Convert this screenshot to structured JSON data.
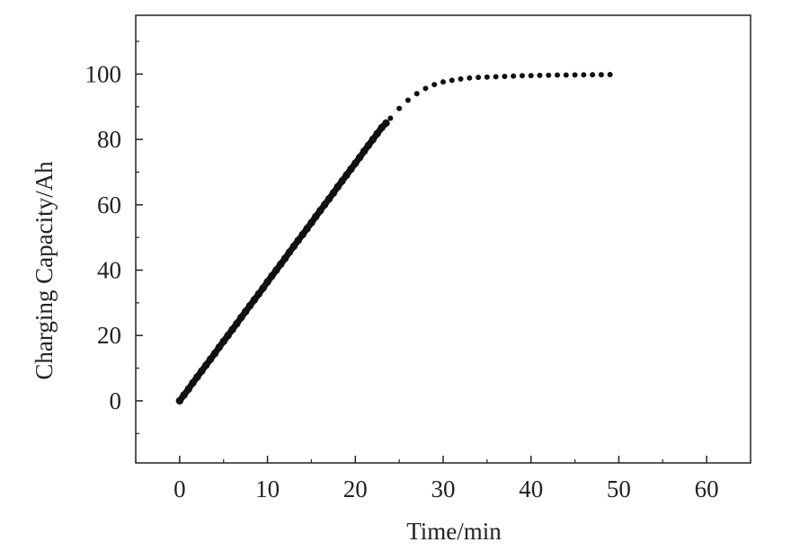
{
  "chart_data": {
    "type": "scatter",
    "title": "",
    "xlabel": "Time/min",
    "ylabel": "Charging Capacity/Ah",
    "xlim": [
      -5,
      65
    ],
    "ylim": [
      -19,
      118
    ],
    "x_ticks": [
      0,
      10,
      20,
      30,
      40,
      50,
      60
    ],
    "y_ticks": [
      0,
      20,
      40,
      60,
      80,
      100
    ],
    "grid": false,
    "legend": "none",
    "marker_color": "#111111",
    "series": [
      {
        "x": [
          0,
          0.5,
          1,
          1.5,
          2,
          2.5,
          3,
          3.5,
          4,
          4.5,
          5,
          5.5,
          6,
          6.5,
          7,
          7.5,
          8,
          8.5,
          9,
          9.5,
          10,
          10.5,
          11,
          11.5,
          12,
          12.5,
          13,
          13.5,
          14,
          14.5,
          15,
          15.5,
          16,
          16.5,
          17,
          17.5,
          18,
          18.5,
          19,
          19.5,
          20,
          20.5,
          21,
          21.5,
          22,
          22.5,
          23,
          23.5,
          24,
          25,
          26,
          27,
          28,
          29,
          30,
          31,
          32,
          33,
          34,
          35,
          36,
          37,
          38,
          39,
          40,
          41,
          42,
          43,
          44,
          45,
          46,
          47,
          48,
          49
        ],
        "y": [
          0,
          1.8,
          3.6,
          5.5,
          7.3,
          9.1,
          10.9,
          12.7,
          14.5,
          16.4,
          18.2,
          20.0,
          21.8,
          23.6,
          25.5,
          27.3,
          29.1,
          30.9,
          32.7,
          34.5,
          36.4,
          38.2,
          40.0,
          41.8,
          43.6,
          45.5,
          47.3,
          49.1,
          50.9,
          52.7,
          54.5,
          56.4,
          58.2,
          60.0,
          61.8,
          63.6,
          65.5,
          67.3,
          69.1,
          70.9,
          72.7,
          74.5,
          76.4,
          78.2,
          80.0,
          81.8,
          83.6,
          85.0,
          86.5,
          89.5,
          92.0,
          94.0,
          95.6,
          96.8,
          97.6,
          98.1,
          98.5,
          98.8,
          99.0,
          99.1,
          99.2,
          99.3,
          99.4,
          99.5,
          99.55,
          99.6,
          99.65,
          99.7,
          99.72,
          99.75,
          99.78,
          99.8,
          99.82,
          99.85
        ]
      }
    ]
  }
}
